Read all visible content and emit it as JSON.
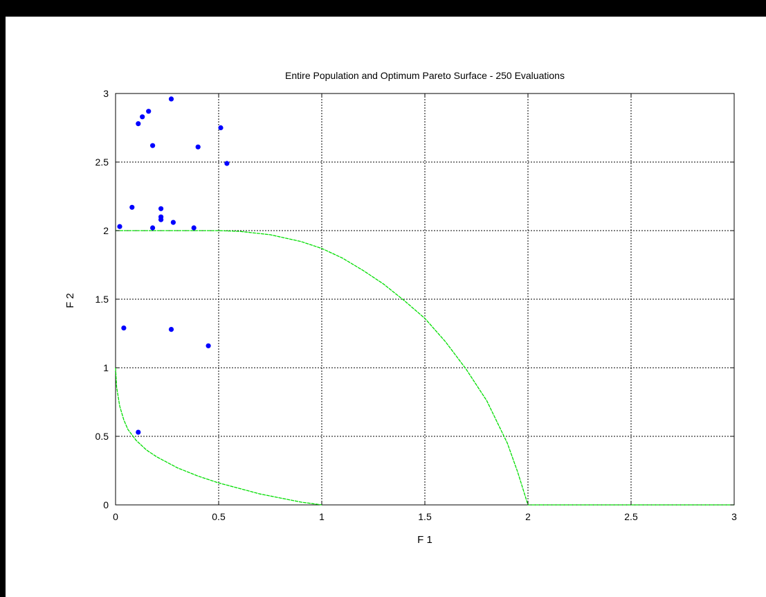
{
  "chart_data": {
    "type": "scatter",
    "title": "Entire Population and Optimum Pareto Surface - 250 Evaluations",
    "xlabel": "F 1",
    "ylabel": "F 2",
    "xlim": [
      0,
      3
    ],
    "ylim": [
      0,
      3
    ],
    "x_ticks": [
      "0",
      "0.5",
      "1",
      "1.5",
      "2",
      "2.5",
      "3"
    ],
    "y_ticks": [
      "0",
      "0.5",
      "1",
      "1.5",
      "2",
      "2.5",
      "3"
    ],
    "grid": true,
    "colors": {
      "points": "#0000ff",
      "curve": "#00dd00"
    },
    "series": [
      {
        "kind": "points",
        "points": [
          [
            0.27,
            2.96
          ],
          [
            0.16,
            2.87
          ],
          [
            0.13,
            2.83
          ],
          [
            0.11,
            2.78
          ],
          [
            0.51,
            2.75
          ],
          [
            0.18,
            2.62
          ],
          [
            0.4,
            2.61
          ],
          [
            0.54,
            2.49
          ],
          [
            0.08,
            2.17
          ],
          [
            0.22,
            2.16
          ],
          [
            0.22,
            2.1
          ],
          [
            0.22,
            2.08
          ],
          [
            0.28,
            2.06
          ],
          [
            0.02,
            2.03
          ],
          [
            0.18,
            2.02
          ],
          [
            0.38,
            2.02
          ],
          [
            0.04,
            1.29
          ],
          [
            0.27,
            1.28
          ],
          [
            0.45,
            1.16
          ],
          [
            0.11,
            0.53
          ]
        ]
      },
      {
        "kind": "curve",
        "points": [
          [
            0,
            2.0
          ],
          [
            0.5,
            2.0
          ],
          [
            0.6,
            1.995
          ],
          [
            0.75,
            1.97
          ],
          [
            0.9,
            1.92
          ],
          [
            1.0,
            1.87
          ],
          [
            1.1,
            1.8
          ],
          [
            1.2,
            1.71
          ],
          [
            1.3,
            1.61
          ],
          [
            1.4,
            1.49
          ],
          [
            1.5,
            1.36
          ],
          [
            1.6,
            1.19
          ],
          [
            1.7,
            0.99
          ],
          [
            1.8,
            0.76
          ],
          [
            1.9,
            0.45
          ],
          [
            1.95,
            0.24
          ],
          [
            2.0,
            0.0
          ],
          [
            3.0,
            0.0
          ]
        ]
      },
      {
        "kind": "curve",
        "points": [
          [
            0,
            1.0
          ],
          [
            0.005,
            0.86
          ],
          [
            0.02,
            0.72
          ],
          [
            0.04,
            0.62
          ],
          [
            0.06,
            0.55
          ],
          [
            0.1,
            0.47
          ],
          [
            0.15,
            0.4
          ],
          [
            0.2,
            0.35
          ],
          [
            0.3,
            0.27
          ],
          [
            0.4,
            0.21
          ],
          [
            0.5,
            0.16
          ],
          [
            0.6,
            0.12
          ],
          [
            0.7,
            0.08
          ],
          [
            0.8,
            0.05
          ],
          [
            0.9,
            0.02
          ],
          [
            1.0,
            0.0
          ]
        ]
      }
    ]
  }
}
